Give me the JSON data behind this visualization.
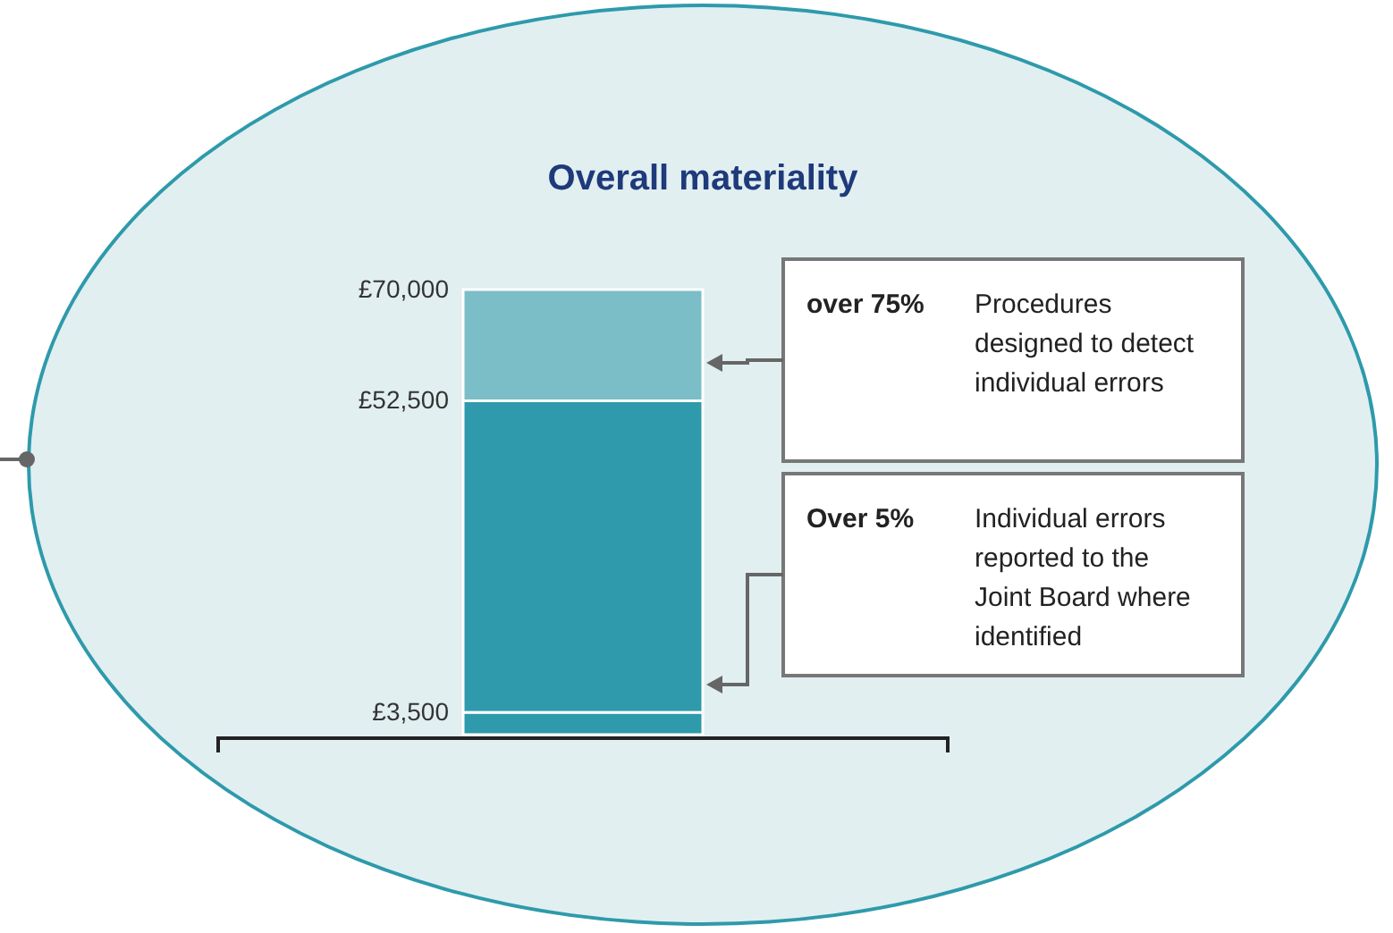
{
  "chart_data": {
    "type": "bar",
    "title": "Overall materiality",
    "stacked": true,
    "categories": [
      null
    ],
    "series": [
      {
        "color": "#2e9aab",
        "values": [
          3500
        ]
      },
      {
        "color": "#2e9aab",
        "values": [
          49000
        ]
      },
      {
        "color": "#7bbec7",
        "values": [
          17500
        ]
      }
    ],
    "ylim": [
      0,
      70000
    ],
    "yticks": [
      {
        "value": 3500,
        "label": "£3,500"
      },
      {
        "value": 52500,
        "label": "£52,500"
      },
      {
        "value": 70000,
        "label": "£70,000"
      }
    ],
    "annotations": [
      "over 75%",
      "Procedures designed to detect individual errors",
      "Over 5%",
      "Individual errors reported to the Joint Board where identified"
    ]
  }
}
